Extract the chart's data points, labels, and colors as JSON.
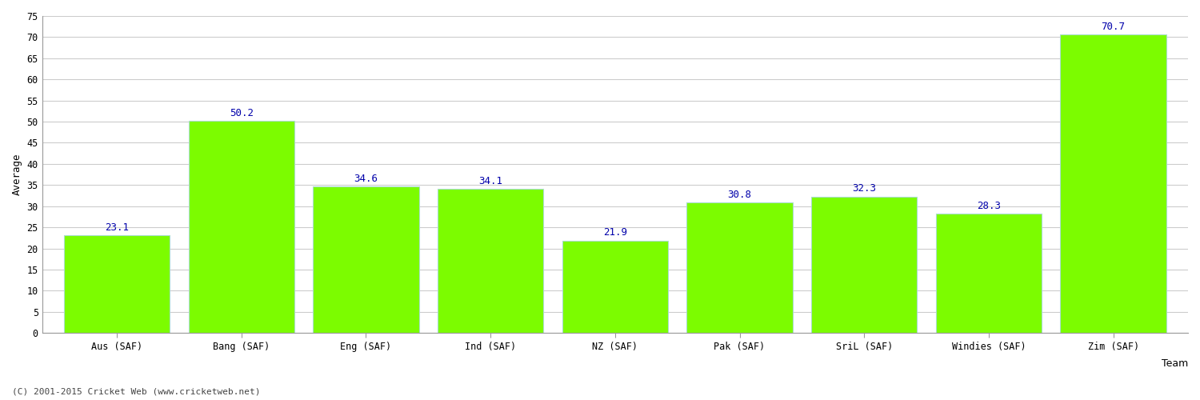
{
  "categories": [
    "Aus (SAF)",
    "Bang (SAF)",
    "Eng (SAF)",
    "Ind (SAF)",
    "NZ (SAF)",
    "Pak (SAF)",
    "SriL (SAF)",
    "Windies (SAF)",
    "Zim (SAF)"
  ],
  "values": [
    23.1,
    50.2,
    34.6,
    34.1,
    21.9,
    30.8,
    32.3,
    28.3,
    70.7
  ],
  "bar_color": "#7cfc00",
  "bar_edgecolor": "#aaddcc",
  "label_color": "#0000aa",
  "xlabel": "Team",
  "ylabel": "Average",
  "ylim": [
    0,
    75
  ],
  "yticks": [
    0,
    5,
    10,
    15,
    20,
    25,
    30,
    35,
    40,
    45,
    50,
    55,
    60,
    65,
    70,
    75
  ],
  "background_color": "#ffffff",
  "grid_color": "#cccccc",
  "footer": "(C) 2001-2015 Cricket Web (www.cricketweb.net)",
  "label_fontsize": 9,
  "axis_label_fontsize": 9,
  "tick_fontsize": 8.5,
  "footer_fontsize": 8,
  "bar_width": 0.85
}
